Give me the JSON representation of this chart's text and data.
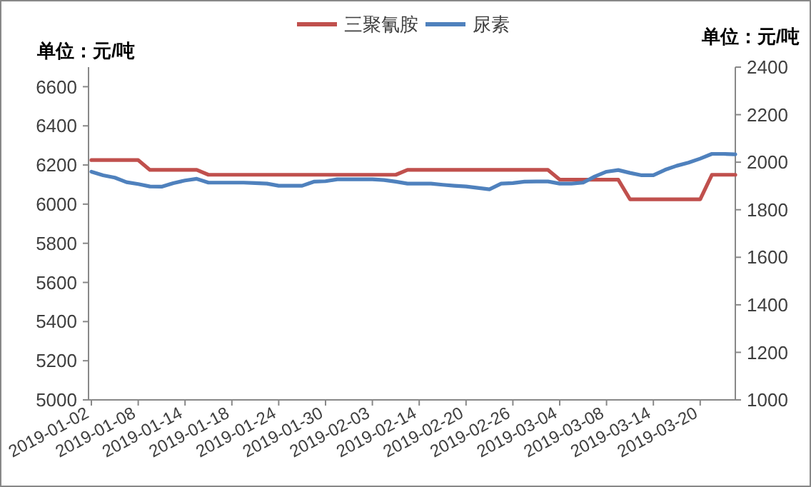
{
  "chart_data": {
    "type": "line",
    "ylabel": "单位：元/吨",
    "y2label": "单位：元/吨",
    "categories": [
      "2019-01-02",
      null,
      null,
      null,
      "2019-01-08",
      null,
      null,
      null,
      "2019-01-14",
      null,
      null,
      null,
      "2019-01-18",
      null,
      null,
      null,
      "2019-01-24",
      null,
      null,
      null,
      "2019-01-30",
      null,
      null,
      null,
      "2019-02-03",
      null,
      null,
      null,
      "2019-02-14",
      null,
      null,
      null,
      "2019-02-20",
      null,
      null,
      null,
      "2019-02-26",
      null,
      null,
      null,
      "2019-03-04",
      null,
      null,
      null,
      "2019-03-08",
      null,
      null,
      null,
      "2019-03-14",
      null,
      null,
      null,
      "2019-03-20",
      null,
      null,
      null
    ],
    "series": [
      {
        "name": "三聚氰胺",
        "color": "#c0504d",
        "values": [
          6225,
          6225,
          6225,
          6225,
          6225,
          6175,
          6175,
          6175,
          6175,
          6175,
          6150,
          6150,
          6150,
          6150,
          6150,
          6150,
          6150,
          6150,
          6150,
          6150,
          6150,
          6150,
          6150,
          6150,
          6150,
          6150,
          6150,
          6175,
          6175,
          6175,
          6175,
          6175,
          6175,
          6175,
          6175,
          6175,
          6175,
          6175,
          6175,
          6175,
          6125,
          6125,
          6125,
          6125,
          6125,
          6125,
          6025,
          6025,
          6025,
          6025,
          6025,
          6025,
          6025,
          6150,
          6150,
          6150
        ]
      },
      {
        "name": "尿素",
        "color": "#4f81bd",
        "axis": "y2",
        "values": [
          1960,
          1945,
          1935,
          1916,
          1908,
          1898,
          1897,
          1912,
          1923,
          1930,
          1914,
          1914,
          1914,
          1914,
          1912,
          1910,
          1901,
          1901,
          1901,
          1918,
          1920,
          1928,
          1928,
          1928,
          1928,
          1925,
          1918,
          1910,
          1910,
          1910,
          1905,
          1901,
          1898,
          1892,
          1886,
          1910,
          1912,
          1918,
          1919,
          1919,
          1910,
          1910,
          1914,
          1940,
          1960,
          1967,
          1955,
          1945,
          1945,
          1968,
          1985,
          1998,
          2015,
          2035,
          2035,
          2033
        ]
      }
    ],
    "ylim": [
      5000,
      6700
    ],
    "yticks": [
      5000,
      5200,
      5400,
      5600,
      5800,
      6000,
      6200,
      6400,
      6600
    ],
    "y2lim": [
      1000,
      2400
    ],
    "y2ticks": [
      1000,
      1200,
      1400,
      1600,
      1800,
      2000,
      2200,
      2400
    ],
    "legend": "top",
    "grid": false,
    "marker": "none",
    "line_style": "solid"
  }
}
